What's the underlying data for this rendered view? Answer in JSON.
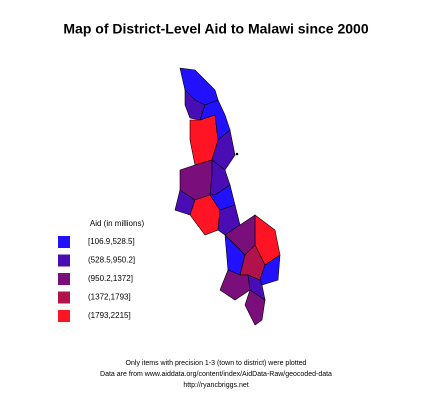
{
  "title": "Map of District-Level Aid to Malawi since 2000",
  "legend": {
    "title": "Aid (in millions)",
    "items": [
      {
        "label": "[106.9,528.5]",
        "color": "#2211ff"
      },
      {
        "label": "(528.5,950.2]",
        "color": "#4a0cb4"
      },
      {
        "label": "(950.2,1372]",
        "color": "#7a0e7a"
      },
      {
        "label": "(1372,1793]",
        "color": "#b2124c"
      },
      {
        "label": "(1793,2215]",
        "color": "#ff1424"
      }
    ]
  },
  "notes": [
    "Only items with precision 1-3 (town to district) were plotted",
    "Data are from www.aiddata.org/content/index/AidData-Raw/geocoded-data",
    "http://ryancbriggs.net"
  ]
}
